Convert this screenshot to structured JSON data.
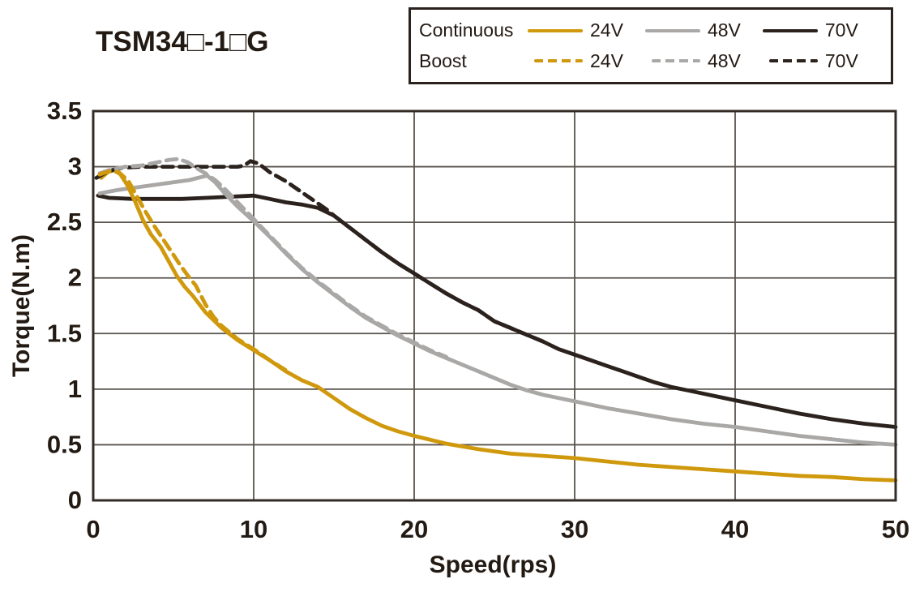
{
  "title": "TSM34□-1□G",
  "colors": {
    "orange": "#d0990d",
    "gray": "#a9a8a6",
    "dark": "#2b221e",
    "grid": "#5a534d",
    "border": "#332b26",
    "text": "#231a13"
  },
  "legend": {
    "rows": [
      {
        "label": "Continuous",
        "style": "solid",
        "entries": [
          {
            "label": "24V",
            "color": "#d0990d"
          },
          {
            "label": "48V",
            "color": "#a9a8a6"
          },
          {
            "label": "70V",
            "color": "#2b221e"
          }
        ]
      },
      {
        "label": "Boost",
        "style": "dashed",
        "entries": [
          {
            "label": "24V",
            "color": "#d0990d"
          },
          {
            "label": "48V",
            "color": "#a9a8a6"
          },
          {
            "label": "70V",
            "color": "#2b221e"
          }
        ]
      }
    ]
  },
  "chart_data": {
    "type": "line",
    "title": "TSM34□-1□G",
    "xlabel": "Speed(rps)",
    "ylabel": "Torque(N.m)",
    "xlim": [
      0,
      50
    ],
    "ylim": [
      0,
      3.5
    ],
    "x_ticks": [
      0,
      10,
      20,
      30,
      40,
      50
    ],
    "y_ticks": [
      0,
      0.5,
      1,
      1.5,
      2,
      2.5,
      3,
      3.5
    ],
    "grid": true,
    "legend_position": "top-right",
    "series": [
      {
        "name": "Continuous 70V",
        "color": "#2b221e",
        "dash": false,
        "points": [
          [
            0.3,
            2.74
          ],
          [
            1,
            2.72
          ],
          [
            2.5,
            2.71
          ],
          [
            4,
            2.71
          ],
          [
            5.5,
            2.71
          ],
          [
            7,
            2.72
          ],
          [
            8.5,
            2.73
          ],
          [
            10,
            2.74
          ],
          [
            11,
            2.71
          ],
          [
            12,
            2.68
          ],
          [
            13,
            2.66
          ],
          [
            14,
            2.63
          ],
          [
            15,
            2.56
          ],
          [
            16,
            2.45
          ],
          [
            17,
            2.34
          ],
          [
            18,
            2.23
          ],
          [
            19,
            2.13
          ],
          [
            20,
            2.04
          ],
          [
            21,
            1.95
          ],
          [
            22,
            1.86
          ],
          [
            23,
            1.78
          ],
          [
            24,
            1.71
          ],
          [
            25,
            1.61
          ],
          [
            26,
            1.55
          ],
          [
            27,
            1.49
          ],
          [
            28,
            1.43
          ],
          [
            29,
            1.36
          ],
          [
            30,
            1.31
          ],
          [
            31,
            1.26
          ],
          [
            32,
            1.21
          ],
          [
            33,
            1.16
          ],
          [
            34,
            1.11
          ],
          [
            35,
            1.06
          ],
          [
            36,
            1.02
          ],
          [
            37,
            0.99
          ],
          [
            38,
            0.96
          ],
          [
            39,
            0.93
          ],
          [
            40,
            0.9
          ],
          [
            42,
            0.84
          ],
          [
            44,
            0.78
          ],
          [
            46,
            0.73
          ],
          [
            48,
            0.69
          ],
          [
            50,
            0.66
          ]
        ]
      },
      {
        "name": "Continuous 48V",
        "color": "#a9a8a6",
        "dash": false,
        "points": [
          [
            0.4,
            2.76
          ],
          [
            1.5,
            2.79
          ],
          [
            3,
            2.82
          ],
          [
            4.5,
            2.85
          ],
          [
            6,
            2.88
          ],
          [
            7.1,
            2.92
          ],
          [
            7.6,
            2.86
          ],
          [
            8.2,
            2.76
          ],
          [
            9,
            2.64
          ],
          [
            10,
            2.51
          ],
          [
            11,
            2.37
          ],
          [
            12,
            2.22
          ],
          [
            13,
            2.08
          ],
          [
            14,
            1.96
          ],
          [
            15,
            1.85
          ],
          [
            16,
            1.74
          ],
          [
            17,
            1.64
          ],
          [
            18,
            1.56
          ],
          [
            19,
            1.48
          ],
          [
            20,
            1.41
          ],
          [
            21,
            1.34
          ],
          [
            22,
            1.28
          ],
          [
            23,
            1.22
          ],
          [
            24,
            1.16
          ],
          [
            25,
            1.1
          ],
          [
            26,
            1.04
          ],
          [
            27,
            0.99
          ],
          [
            28,
            0.95
          ],
          [
            29,
            0.92
          ],
          [
            30,
            0.89
          ],
          [
            32,
            0.83
          ],
          [
            34,
            0.78
          ],
          [
            36,
            0.73
          ],
          [
            38,
            0.69
          ],
          [
            40,
            0.66
          ],
          [
            42,
            0.62
          ],
          [
            44,
            0.58
          ],
          [
            46,
            0.55
          ],
          [
            48,
            0.52
          ],
          [
            50,
            0.5
          ]
        ]
      },
      {
        "name": "Continuous 24V",
        "color": "#d0990d",
        "dash": false,
        "points": [
          [
            0.5,
            2.9
          ],
          [
            0.9,
            2.95
          ],
          [
            1.3,
            2.97
          ],
          [
            1.7,
            2.93
          ],
          [
            2.1,
            2.84
          ],
          [
            2.6,
            2.69
          ],
          [
            3.1,
            2.52
          ],
          [
            3.6,
            2.39
          ],
          [
            4.2,
            2.28
          ],
          [
            4.7,
            2.15
          ],
          [
            5.2,
            2.02
          ],
          [
            5.7,
            1.92
          ],
          [
            6.2,
            1.84
          ],
          [
            7,
            1.69
          ],
          [
            8,
            1.55
          ],
          [
            9,
            1.44
          ],
          [
            10,
            1.35
          ],
          [
            11,
            1.26
          ],
          [
            12,
            1.16
          ],
          [
            13,
            1.08
          ],
          [
            14,
            1.02
          ],
          [
            15,
            0.92
          ],
          [
            16,
            0.82
          ],
          [
            17,
            0.74
          ],
          [
            18,
            0.67
          ],
          [
            19,
            0.62
          ],
          [
            20,
            0.58
          ],
          [
            22,
            0.51
          ],
          [
            24,
            0.46
          ],
          [
            26,
            0.42
          ],
          [
            28,
            0.4
          ],
          [
            30,
            0.38
          ],
          [
            32,
            0.35
          ],
          [
            34,
            0.32
          ],
          [
            36,
            0.3
          ],
          [
            38,
            0.28
          ],
          [
            40,
            0.26
          ],
          [
            42,
            0.24
          ],
          [
            44,
            0.22
          ],
          [
            46,
            0.21
          ],
          [
            48,
            0.19
          ],
          [
            50,
            0.18
          ]
        ]
      },
      {
        "name": "Boost 70V",
        "color": "#2b221e",
        "dash": true,
        "points": [
          [
            0.2,
            2.9
          ],
          [
            0.7,
            2.94
          ],
          [
            1.2,
            2.97
          ],
          [
            1.8,
            2.99
          ],
          [
            3,
            3.0
          ],
          [
            5,
            3.0
          ],
          [
            7,
            3.0
          ],
          [
            9,
            3.0
          ],
          [
            9.4,
            3.01
          ],
          [
            9.8,
            3.05
          ],
          [
            10.3,
            3.03
          ],
          [
            11,
            2.95
          ],
          [
            12,
            2.87
          ],
          [
            13,
            2.77
          ],
          [
            14,
            2.67
          ],
          [
            14.6,
            2.61
          ],
          [
            15,
            2.56
          ],
          [
            16,
            2.45
          ],
          [
            17,
            2.34
          ],
          [
            18,
            2.23
          ],
          [
            19,
            2.13
          ],
          [
            20,
            2.04
          ],
          [
            21,
            1.95
          ],
          [
            22,
            1.86
          ],
          [
            23,
            1.78
          ],
          [
            24,
            1.71
          ],
          [
            25,
            1.61
          ],
          [
            26,
            1.55
          ],
          [
            27,
            1.49
          ],
          [
            28,
            1.43
          ]
        ]
      },
      {
        "name": "Boost 48V",
        "color": "#a9a8a6",
        "dash": true,
        "points": [
          [
            0.4,
            2.94
          ],
          [
            1,
            2.97
          ],
          [
            2,
            3.0
          ],
          [
            3,
            3.01
          ],
          [
            4,
            3.04
          ],
          [
            4.7,
            3.06
          ],
          [
            5.3,
            3.07
          ],
          [
            5.9,
            3.04
          ],
          [
            6.4,
            2.99
          ],
          [
            7,
            2.94
          ],
          [
            7.6,
            2.88
          ],
          [
            8.2,
            2.8
          ],
          [
            9,
            2.68
          ],
          [
            10,
            2.53
          ],
          [
            10.6,
            2.44
          ],
          [
            11,
            2.38
          ],
          [
            12,
            2.23
          ],
          [
            13,
            2.09
          ],
          [
            14,
            1.97
          ],
          [
            15,
            1.86
          ],
          [
            16,
            1.75
          ],
          [
            17,
            1.65
          ],
          [
            18,
            1.57
          ],
          [
            19,
            1.49
          ],
          [
            20,
            1.42
          ],
          [
            21,
            1.35
          ],
          [
            22,
            1.29
          ]
        ]
      },
      {
        "name": "Boost 24V",
        "color": "#d0990d",
        "dash": true,
        "points": [
          [
            0.4,
            2.93
          ],
          [
            1,
            2.96
          ],
          [
            1.6,
            2.95
          ],
          [
            2.2,
            2.87
          ],
          [
            2.7,
            2.74
          ],
          [
            3.2,
            2.61
          ],
          [
            3.7,
            2.49
          ],
          [
            4.3,
            2.36
          ],
          [
            4.9,
            2.23
          ],
          [
            5.4,
            2.12
          ],
          [
            5.9,
            2.02
          ],
          [
            6.4,
            1.93
          ],
          [
            7,
            1.76
          ],
          [
            7.5,
            1.65
          ],
          [
            8,
            1.57
          ],
          [
            9,
            1.45
          ],
          [
            10,
            1.36
          ],
          [
            11,
            1.26
          ],
          [
            12,
            1.17
          ]
        ]
      }
    ]
  }
}
